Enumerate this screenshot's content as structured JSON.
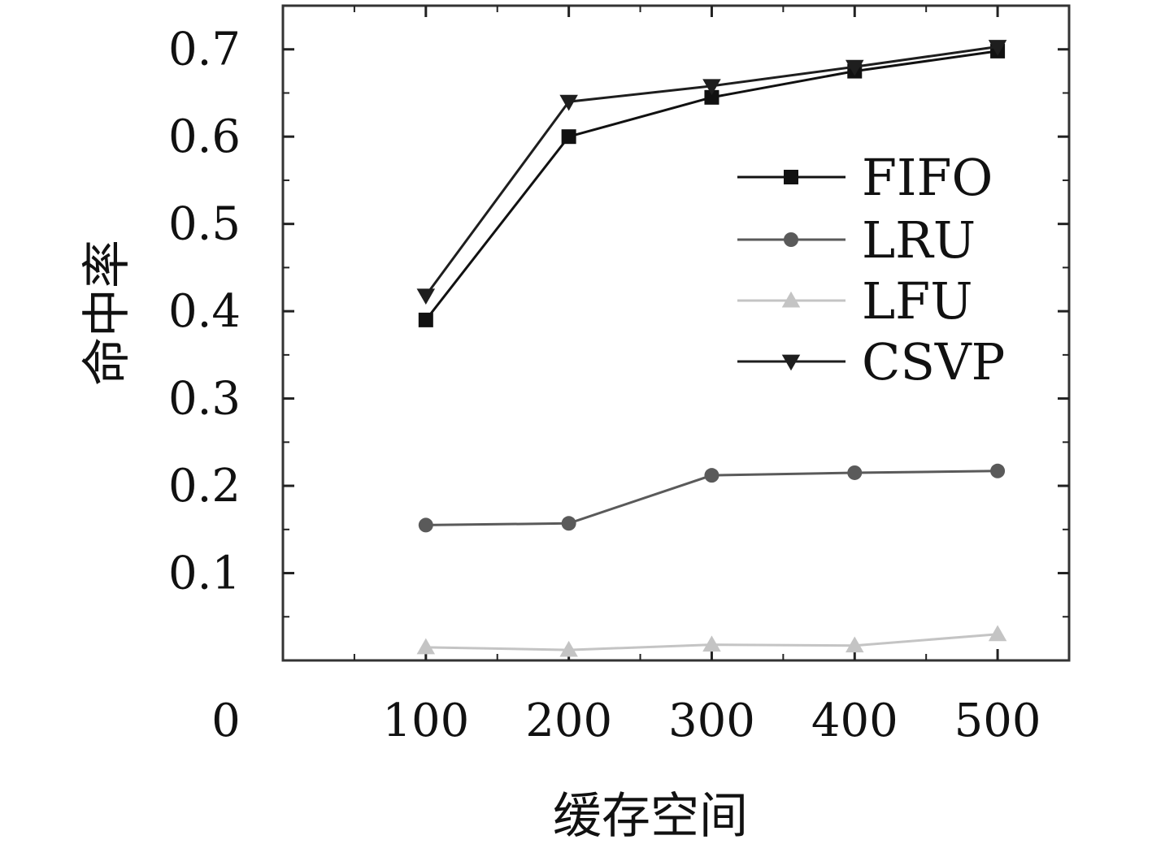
{
  "chart_data": {
    "type": "line",
    "xlabel": "缓存空间",
    "ylabel": "命中率",
    "x": [
      100,
      200,
      300,
      400,
      500
    ],
    "x_ticks": [
      "0",
      "100",
      "200",
      "300",
      "400",
      "500"
    ],
    "y_ticks": [
      "0.1",
      "0.2",
      "0.3",
      "0.4",
      "0.5",
      "0.6",
      "0.7"
    ],
    "xlim": [
      0,
      550
    ],
    "ylim": [
      0,
      0.75
    ],
    "grid": false,
    "legend_position": "top-right",
    "series": [
      {
        "name": "FIFO",
        "marker": "square",
        "color": "#111111",
        "values": [
          0.39,
          0.6,
          0.645,
          0.675,
          0.698
        ]
      },
      {
        "name": "LRU",
        "marker": "circle",
        "color": "#5a5a5a",
        "values": [
          0.155,
          0.157,
          0.212,
          0.215,
          0.217
        ]
      },
      {
        "name": "LFU",
        "marker": "triangle-up",
        "color": "#c4c4c4",
        "values": [
          0.015,
          0.012,
          0.018,
          0.017,
          0.03
        ]
      },
      {
        "name": "CSVP",
        "marker": "triangle-down",
        "color": "#1e1e1e",
        "values": [
          0.418,
          0.64,
          0.658,
          0.68,
          0.703
        ]
      }
    ]
  }
}
